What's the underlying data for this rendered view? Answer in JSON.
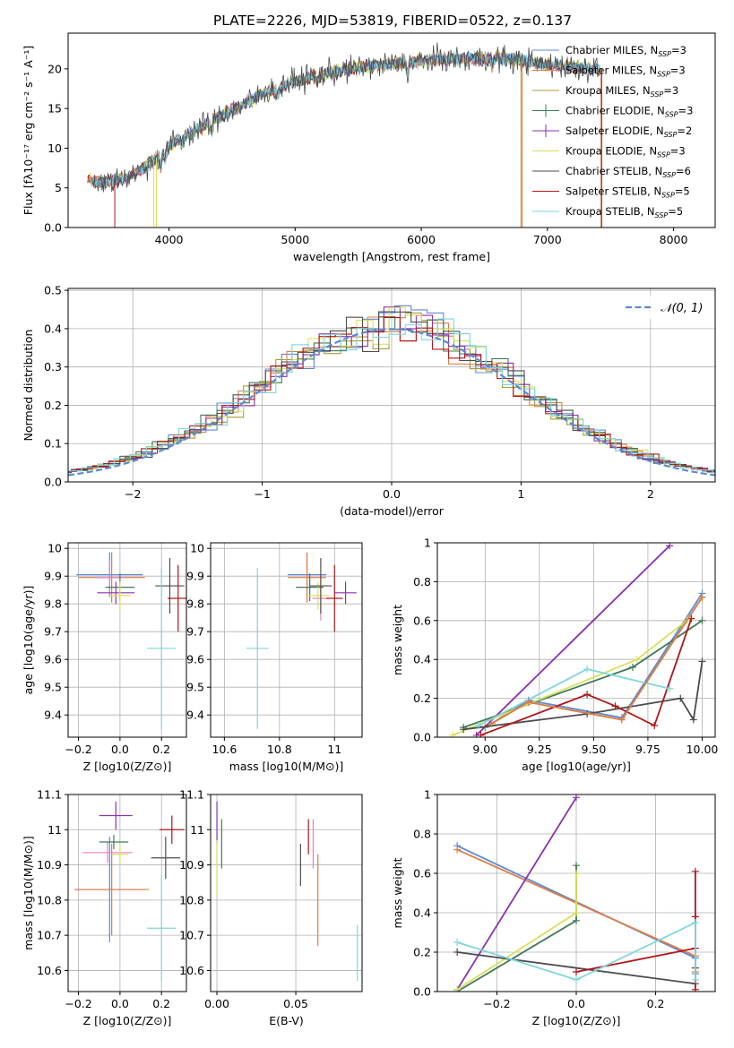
{
  "figure_title": "PLATE=2226, MJD=53819, FIBERID=0522, z=0.137",
  "colors": {
    "Chabrier MILES": "#5b8bd6",
    "Salpeter MILES": "#e07c45",
    "Kroupa MILES": "#a89a3a",
    "Chabrier ELODIE": "#3f7a55",
    "Salpeter ELODIE": "#8e2fb0",
    "Kroupa ELODIE": "#d8e05a",
    "Chabrier STELIB": "#4d4d4d",
    "Salpeter STELIB": "#b0171a",
    "Kroupa STELIB": "#7fd6dd",
    "extra_pink": "#e87fc9"
  },
  "chart_data": [
    {
      "id": "spectrum",
      "type": "line",
      "xlabel": "wavelength [Angstrom, rest frame]",
      "ylabel": "Flux [fλ10⁻¹⁷ erg cm⁻² s⁻¹ A⁻¹]",
      "xlim": [
        3200,
        8330
      ],
      "ylim": [
        0,
        24.5
      ],
      "xticks": [
        4000,
        5000,
        6000,
        7000,
        8000
      ],
      "yticks": [
        0,
        5,
        10,
        15,
        20
      ],
      "grid": false,
      "legend_placement": "upper-right",
      "continuum": {
        "x": [
          3350,
          3500,
          3650,
          3800,
          3950,
          4100,
          4250,
          4400,
          4550,
          4700,
          4850,
          5000,
          5200,
          5400,
          5600,
          5800,
          6000,
          6200,
          6400,
          6600,
          6800,
          7000,
          7200,
          7400
        ],
        "y": [
          6.0,
          5.7,
          6.2,
          7.5,
          9.5,
          11.5,
          12.5,
          14.0,
          15.2,
          16.5,
          17.5,
          18.5,
          19.3,
          19.8,
          20.4,
          20.7,
          21.0,
          21.2,
          21.3,
          21.3,
          21.0,
          20.5,
          20.3,
          20.0
        ]
      },
      "series": [
        {
          "name": "Chabrier MILES, N_SSP=3",
          "key": "Chabrier MILES"
        },
        {
          "name": "Salpeter MILES, N_SSP=3",
          "key": "Salpeter MILES"
        },
        {
          "name": "Kroupa MILES, N_SSP=3",
          "key": "Kroupa MILES"
        },
        {
          "name": "Chabrier ELODIE, N_SSP=3",
          "key": "Chabrier ELODIE"
        },
        {
          "name": "Salpeter ELODIE, N_SSP=2",
          "key": "Salpeter ELODIE"
        },
        {
          "name": "Kroupa ELODIE, N_SSP=3",
          "key": "Kroupa ELODIE"
        },
        {
          "name": "Chabrier STELIB, N_SSP=6",
          "key": "Chabrier STELIB"
        },
        {
          "name": "Salpeter STELIB, N_SSP=5",
          "key": "Salpeter STELIB"
        },
        {
          "name": "Kroupa STELIB, N_SSP=5",
          "key": "Kroupa STELIB"
        }
      ]
    },
    {
      "id": "residuals",
      "type": "line",
      "xlabel": "(data-model)/error",
      "ylabel": "Normed distribution",
      "xlim": [
        -2.5,
        2.5
      ],
      "ylim": [
        0,
        0.505
      ],
      "xticks": [
        -2,
        -1,
        0,
        1,
        2
      ],
      "yticks": [
        0.0,
        0.1,
        0.2,
        0.3,
        0.4,
        0.5
      ],
      "grid": true,
      "legend_placement": "upper-right",
      "gauss_label": "𝒩(0, 1)",
      "gauss_color": "#5b8bd6"
    },
    {
      "id": "age_vs_Z",
      "type": "scatter",
      "xlabel": "Z [log10(Z/Z⊙)]",
      "ylabel": "age [log10(age/yr)]",
      "xlim": [
        -0.25,
        0.32
      ],
      "ylim": [
        9.32,
        10.02
      ],
      "xticks": [
        -0.2,
        0.0,
        0.2
      ],
      "yticks": [
        9.4,
        9.5,
        9.6,
        9.7,
        9.8,
        9.9,
        10.0
      ],
      "grid": true,
      "points": [
        {
          "key": "Chabrier MILES",
          "x": -0.05,
          "xerr": 0.16,
          "y": 9.905,
          "yerr": 0.08
        },
        {
          "key": "Salpeter MILES",
          "x": -0.04,
          "xerr": 0.16,
          "y": 9.895,
          "yerr": 0.09
        },
        {
          "key": "extra_pink",
          "x": -0.05,
          "xerr": 0.07,
          "y": 9.895,
          "yerr": 0.06
        },
        {
          "key": "Chabrier ELODIE",
          "x": 0.0,
          "xerr": 0.07,
          "y": 9.86,
          "yerr": 0.05
        },
        {
          "key": "Salpeter ELODIE",
          "x": -0.02,
          "xerr": 0.09,
          "y": 9.84,
          "yerr": 0.04
        },
        {
          "key": "Kroupa ELODIE",
          "x": 0.0,
          "xerr": 0.05,
          "y": 9.83,
          "yerr": 0.05
        },
        {
          "key": "Chabrier STELIB",
          "x": 0.24,
          "xerr": 0.07,
          "y": 9.865,
          "yerr": 0.1
        },
        {
          "key": "Salpeter STELIB",
          "x": 0.28,
          "xerr": 0.05,
          "y": 9.82,
          "yerr": 0.12
        },
        {
          "key": "Kroupa STELIB",
          "x": 0.2,
          "xerr": 0.07,
          "y": 9.64,
          "yerr": 0.29
        }
      ]
    },
    {
      "id": "age_vs_mass",
      "type": "scatter",
      "xlabel": "mass [log10(M/M⊙)]",
      "ylabel": "",
      "xlim": [
        10.55,
        11.1
      ],
      "ylim": [
        9.32,
        10.02
      ],
      "xticks": [
        10.6,
        10.8,
        11.0
      ],
      "yticks": [
        9.4,
        9.5,
        9.6,
        9.7,
        9.8,
        9.9,
        10.0
      ],
      "grid": true,
      "points": [
        {
          "key": "Chabrier MILES",
          "x": 10.9,
          "xerr": 0.07,
          "y": 9.905,
          "yerr": 0.08
        },
        {
          "key": "Salpeter MILES",
          "x": 10.9,
          "xerr": 0.07,
          "y": 9.895,
          "yerr": 0.09
        },
        {
          "key": "extra_pink",
          "x": 10.95,
          "xerr": 0.03,
          "y": 9.82,
          "yerr": 0.08
        },
        {
          "key": "Chabrier ELODIE",
          "x": 10.91,
          "xerr": 0.05,
          "y": 9.86,
          "yerr": 0.05
        },
        {
          "key": "Salpeter ELODIE",
          "x": 11.04,
          "xerr": 0.04,
          "y": 9.84,
          "yerr": 0.04
        },
        {
          "key": "Kroupa ELODIE",
          "x": 10.94,
          "xerr": 0.04,
          "y": 9.83,
          "yerr": 0.05
        },
        {
          "key": "Chabrier STELIB",
          "x": 10.95,
          "xerr": 0.04,
          "y": 9.865,
          "yerr": 0.1
        },
        {
          "key": "Salpeter STELIB",
          "x": 11.0,
          "xerr": 0.03,
          "y": 9.82,
          "yerr": 0.12
        },
        {
          "key": "Kroupa STELIB",
          "x": 10.72,
          "xerr": 0.04,
          "y": 9.64,
          "yerr": 0.29
        }
      ]
    },
    {
      "id": "mass_weight_vs_age",
      "type": "line",
      "xlabel": "age [log10(age/yr)]",
      "ylabel": "mass weight",
      "xlim": [
        8.78,
        10.06
      ],
      "ylim": [
        0.0,
        1.0
      ],
      "xticks": [
        9.0,
        9.25,
        9.5,
        9.75,
        10.0
      ],
      "xticklabels": [
        "9.00",
        "9.25",
        "9.50",
        "9.75",
        "10.00"
      ],
      "yticks": [
        0.0,
        0.2,
        0.4,
        0.6,
        0.8,
        1.0
      ],
      "grid": true,
      "series": [
        {
          "key": "Chabrier MILES",
          "x": [
            9.03,
            9.2,
            9.63,
            10.0
          ],
          "y": [
            0.07,
            0.19,
            0.1,
            0.74
          ]
        },
        {
          "key": "Kroupa MILES",
          "x": [
            9.0,
            9.2,
            9.63,
            10.0
          ],
          "y": [
            0.05,
            0.18,
            0.09,
            0.72
          ]
        },
        {
          "key": "Chabrier ELODIE",
          "x": [
            8.9,
            9.68,
            10.0
          ],
          "y": [
            0.05,
            0.36,
            0.6
          ]
        },
        {
          "key": "Salpeter ELODIE",
          "x": [
            8.96,
            9.85
          ],
          "y": [
            0.01,
            0.985
          ]
        },
        {
          "key": "Kroupa ELODIE",
          "x": [
            8.85,
            9.7,
            9.93
          ],
          "y": [
            0.01,
            0.4,
            0.6
          ]
        },
        {
          "key": "Chabrier STELIB",
          "x": [
            8.9,
            9.47,
            9.9,
            9.96,
            10.0
          ],
          "y": [
            0.04,
            0.12,
            0.2,
            0.09,
            0.39
          ]
        },
        {
          "key": "Salpeter STELIB",
          "x": [
            8.98,
            9.47,
            9.6,
            9.78,
            9.95
          ],
          "y": [
            0.01,
            0.22,
            0.16,
            0.06,
            0.61
          ]
        },
        {
          "key": "Kroupa STELIB",
          "x": [
            8.97,
            9.47,
            9.85
          ],
          "y": [
            0.06,
            0.35,
            0.25
          ]
        },
        {
          "key": "Salpeter MILES",
          "x": [
            9.03,
            9.2,
            9.63,
            10.0
          ],
          "y": [
            0.07,
            0.18,
            0.09,
            0.72
          ]
        }
      ]
    },
    {
      "id": "mass_vs_Z",
      "type": "scatter",
      "xlabel": "Z [log10(Z/Z⊙)]",
      "ylabel": "mass [log10(M/M⊙)]",
      "xlim": [
        -0.25,
        0.32
      ],
      "ylim": [
        10.54,
        11.1
      ],
      "xticks": [
        -0.2,
        0.0,
        0.2
      ],
      "yticks": [
        10.6,
        10.7,
        10.8,
        10.9,
        11.0,
        11.1
      ],
      "grid": true,
      "points": [
        {
          "key": "Chabrier MILES",
          "x": -0.05,
          "xerr": 0.16,
          "y": 10.83,
          "yerr": 0.15
        },
        {
          "key": "Salpeter MILES",
          "x": -0.04,
          "xerr": 0.18,
          "y": 10.83,
          "yerr": 0.13
        },
        {
          "key": "extra_pink",
          "x": -0.06,
          "xerr": 0.12,
          "y": 10.935,
          "yerr": 0.03
        },
        {
          "key": "Chabrier ELODIE",
          "x": -0.03,
          "xerr": 0.07,
          "y": 10.965,
          "yerr": 0.02
        },
        {
          "key": "Salpeter ELODIE",
          "x": -0.02,
          "xerr": 0.08,
          "y": 11.04,
          "yerr": 0.04
        },
        {
          "key": "Kroupa ELODIE",
          "x": 0.0,
          "xerr": 0.04,
          "y": 10.93,
          "yerr": 0.03
        },
        {
          "key": "Chabrier STELIB",
          "x": 0.22,
          "xerr": 0.07,
          "y": 10.92,
          "yerr": 0.06
        },
        {
          "key": "Salpeter STELIB",
          "x": 0.25,
          "xerr": 0.06,
          "y": 11.0,
          "yerr": 0.04
        },
        {
          "key": "Kroupa STELIB",
          "x": 0.2,
          "xerr": 0.07,
          "y": 10.72,
          "yerr": 0.15
        }
      ]
    },
    {
      "id": "mass_vs_EBV",
      "type": "scatter",
      "xlabel": "E(B-V)",
      "ylabel": "",
      "xlim": [
        -0.004,
        0.092
      ],
      "ylim": [
        10.54,
        11.1
      ],
      "xticks": [
        0.0,
        0.05
      ],
      "xticklabels": [
        "0.00",
        "0.05"
      ],
      "yticks": [
        10.6,
        10.7,
        10.8,
        10.9,
        11.0,
        11.1
      ],
      "grid": true,
      "points": [
        {
          "key": "Salpeter ELODIE",
          "x": 0.0,
          "y": 11.02,
          "yerr": 0.06
        },
        {
          "key": "Kroupa ELODIE",
          "x": 0.0,
          "y": 10.89,
          "yerr": 0.08
        },
        {
          "key": "Chabrier ELODIE",
          "x": 0.003,
          "y": 10.96,
          "yerr": 0.07
        },
        {
          "key": "Chabrier STELIB",
          "x": 0.053,
          "y": 10.9,
          "yerr": 0.06
        },
        {
          "key": "Salpeter STELIB",
          "x": 0.058,
          "y": 10.98,
          "yerr": 0.05
        },
        {
          "key": "extra_pink",
          "x": 0.061,
          "y": 10.96,
          "yerr": 0.07
        },
        {
          "key": "Salpeter MILES",
          "x": 0.064,
          "y": 10.8,
          "yerr": 0.13
        },
        {
          "key": "Kroupa STELIB",
          "x": 0.089,
          "y": 10.65,
          "yerr": 0.08
        }
      ]
    },
    {
      "id": "mass_weight_vs_Z",
      "type": "line",
      "xlabel": "Z [log10(Z/Z⊙)]",
      "ylabel": "mass weight",
      "xlim": [
        -0.35,
        0.35
      ],
      "ylim": [
        0.0,
        1.0
      ],
      "xticks": [
        -0.2,
        0.0,
        0.2
      ],
      "xticklabels": [
        "−0.2",
        "0.0",
        "0.2"
      ],
      "yticks": [
        0.0,
        0.2,
        0.4,
        0.6,
        0.8,
        1.0
      ],
      "grid": true,
      "series": [
        {
          "key": "Chabrier MILES",
          "x": [
            -0.3,
            0.3,
            0.3
          ],
          "y": [
            0.74,
            0.17,
            0.09
          ]
        },
        {
          "key": "Salpeter MILES",
          "x": [
            -0.3,
            0.3,
            0.3
          ],
          "y": [
            0.72,
            0.18,
            0.1
          ]
        },
        {
          "key": "Chabrier ELODIE",
          "x": [
            -0.3,
            0.0,
            0.0
          ],
          "y": [
            0.0,
            0.36,
            0.64
          ]
        },
        {
          "key": "Salpeter ELODIE",
          "x": [
            -0.3,
            0.0
          ],
          "y": [
            0.01,
            0.985
          ]
        },
        {
          "key": "Kroupa ELODIE",
          "x": [
            -0.3,
            0.0,
            0.0
          ],
          "y": [
            0.01,
            0.4,
            0.6
          ]
        },
        {
          "key": "Chabrier STELIB",
          "x": [
            -0.3,
            0.3,
            0.3
          ],
          "y": [
            0.2,
            0.04,
            0.12
          ]
        },
        {
          "key": "Salpeter STELIB",
          "x": [
            0.0,
            0.3,
            0.3,
            0.3,
            0.3
          ],
          "y": [
            0.1,
            0.22,
            0.01,
            0.38,
            0.61
          ]
        },
        {
          "key": "Kroupa STELIB",
          "x": [
            -0.3,
            0.0,
            0.3,
            0.3
          ],
          "y": [
            0.25,
            0.06,
            0.35,
            0.06
          ]
        }
      ]
    }
  ]
}
